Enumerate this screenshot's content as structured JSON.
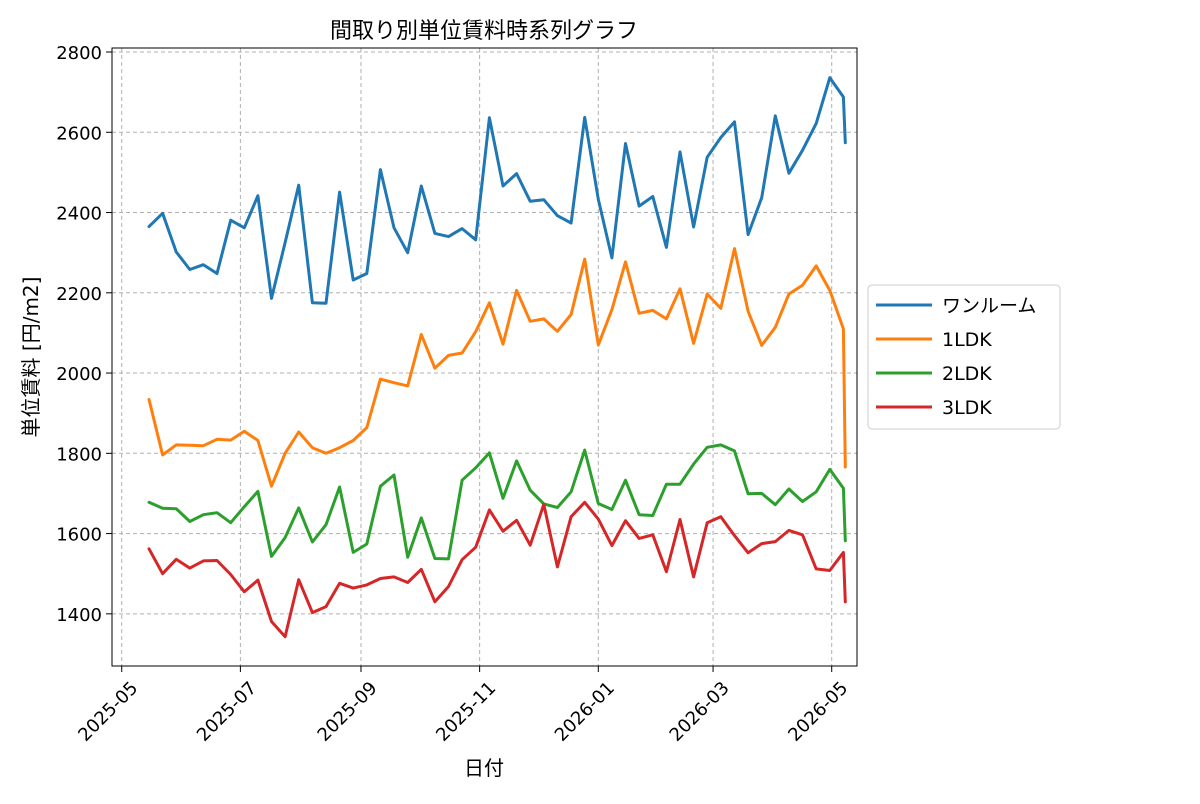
{
  "chart_data": {
    "type": "line",
    "title": "間取り別単位賃料時系列グラフ",
    "xlabel": "日付",
    "ylabel": "単位賃料 [円/m2]",
    "x_type": "date",
    "xlim": [
      "2025-04-26",
      "2026-05-14"
    ],
    "ylim": [
      1270,
      2810
    ],
    "x_ticks": [
      "2025-05-01",
      "2025-07-01",
      "2025-09-01",
      "2025-11-01",
      "2026-01-01",
      "2026-03-01",
      "2026-05-01"
    ],
    "x_tick_labels": [
      "2025-05",
      "2025-07",
      "2025-09",
      "2025-11",
      "2026-01",
      "2026-03",
      "2026-05"
    ],
    "y_ticks": [
      1400,
      1600,
      1800,
      2000,
      2200,
      2400,
      2600,
      2800
    ],
    "y_tick_labels": [
      "1400",
      "1600",
      "1800",
      "2000",
      "2200",
      "2400",
      "2600",
      "2800"
    ],
    "grid": true,
    "legend_position": "outside-right",
    "x": [
      "2025-05-15",
      "2025-05-22",
      "2025-05-29",
      "2025-06-05",
      "2025-06-12",
      "2025-06-19",
      "2025-06-26",
      "2025-07-03",
      "2025-07-10",
      "2025-07-17",
      "2025-07-24",
      "2025-07-31",
      "2025-08-07",
      "2025-08-14",
      "2025-08-21",
      "2025-08-28",
      "2025-09-04",
      "2025-09-11",
      "2025-09-18",
      "2025-09-25",
      "2025-10-02",
      "2025-10-09",
      "2025-10-16",
      "2025-10-23",
      "2025-10-30",
      "2025-11-06",
      "2025-11-13",
      "2025-11-20",
      "2025-11-27",
      "2025-12-04",
      "2025-12-11",
      "2025-12-18",
      "2025-12-25",
      "2026-01-01",
      "2026-01-08",
      "2026-01-15",
      "2026-01-22",
      "2026-01-29",
      "2026-02-05",
      "2026-02-12",
      "2026-02-19",
      "2026-02-26",
      "2026-03-05",
      "2026-03-12",
      "2026-03-19",
      "2026-03-26",
      "2026-04-02",
      "2026-04-09",
      "2026-04-16",
      "2026-04-23",
      "2026-04-30",
      "2026-05-07",
      "2026-05-08"
    ],
    "series": [
      {
        "name": "ワンルーム",
        "color": "#1f77b4",
        "values": [
          2365,
          2398,
          2302,
          2258,
          2270,
          2248,
          2381,
          2362,
          2442,
          2186,
          2325,
          2468,
          2175,
          2174,
          2451,
          2232,
          2248,
          2507,
          2362,
          2300,
          2466,
          2348,
          2340,
          2360,
          2332,
          2636,
          2466,
          2497,
          2428,
          2432,
          2392,
          2374,
          2637,
          2433,
          2287,
          2572,
          2416,
          2440,
          2313,
          2551,
          2364,
          2538,
          2587,
          2626,
          2345,
          2437,
          2641,
          2498,
          2555,
          2622,
          2736,
          2688,
          2574
        ]
      },
      {
        "name": "1LDK",
        "color": "#ff7f0e",
        "values": [
          1934,
          1796,
          1821,
          1820,
          1819,
          1835,
          1833,
          1855,
          1832,
          1718,
          1800,
          1853,
          1814,
          1800,
          1814,
          1832,
          1864,
          1985,
          1976,
          1968,
          2096,
          2012,
          2044,
          2050,
          2103,
          2175,
          2072,
          2206,
          2129,
          2135,
          2104,
          2146,
          2284,
          2070,
          2158,
          2277,
          2149,
          2156,
          2135,
          2210,
          2074,
          2197,
          2161,
          2310,
          2154,
          2069,
          2114,
          2197,
          2219,
          2267,
          2206,
          2110,
          1766
        ]
      },
      {
        "name": "2LDK",
        "color": "#2ca02c",
        "values": [
          1678,
          1663,
          1662,
          1630,
          1647,
          1652,
          1627,
          1667,
          1705,
          1543,
          1590,
          1664,
          1579,
          1622,
          1716,
          1553,
          1574,
          1718,
          1746,
          1541,
          1639,
          1538,
          1537,
          1733,
          1764,
          1801,
          1688,
          1781,
          1708,
          1674,
          1665,
          1704,
          1808,
          1675,
          1660,
          1733,
          1647,
          1645,
          1723,
          1723,
          1773,
          1815,
          1821,
          1806,
          1699,
          1700,
          1672,
          1711,
          1680,
          1704,
          1760,
          1713,
          1582
        ]
      },
      {
        "name": "3LDK",
        "color": "#d62728",
        "values": [
          1562,
          1500,
          1536,
          1514,
          1532,
          1533,
          1498,
          1455,
          1484,
          1381,
          1343,
          1485,
          1403,
          1418,
          1476,
          1464,
          1472,
          1488,
          1492,
          1478,
          1511,
          1430,
          1468,
          1535,
          1566,
          1659,
          1606,
          1633,
          1571,
          1673,
          1517,
          1642,
          1678,
          1636,
          1570,
          1632,
          1588,
          1597,
          1505,
          1635,
          1492,
          1627,
          1642,
          1595,
          1552,
          1575,
          1580,
          1608,
          1597,
          1512,
          1508,
          1553,
          1430
        ]
      }
    ]
  }
}
